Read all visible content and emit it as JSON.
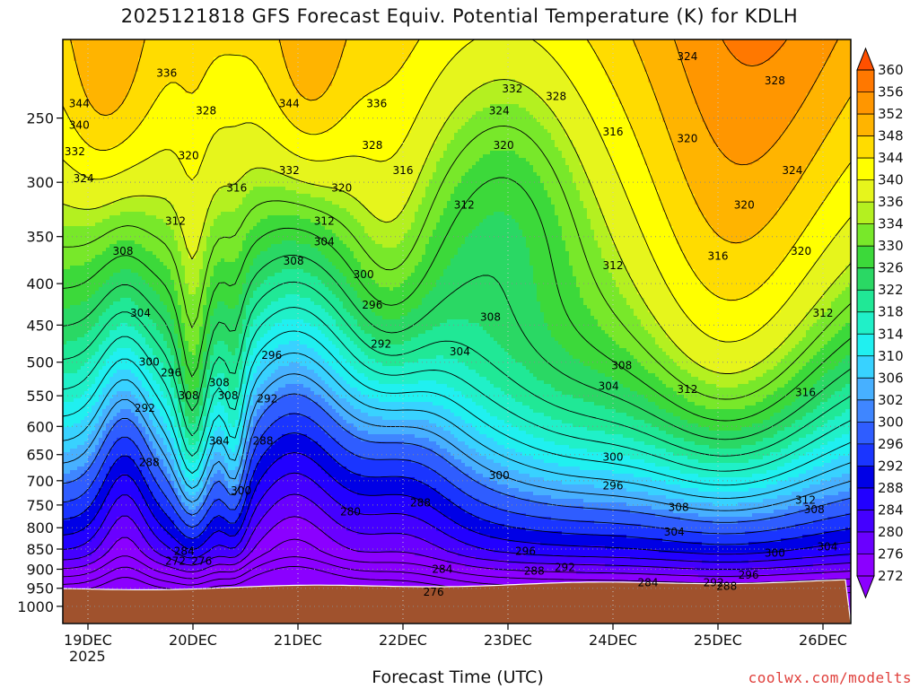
{
  "title": "2025121818 GFS Forecast Equiv. Potential Temperature (K) for KDLH",
  "xlabel": "Forecast Time (UTC)",
  "credit": "coolwx.com/modelts",
  "year_label": "2025",
  "colors": {
    "ground": "#a0522d",
    "scale": [
      "#8b00ff",
      "#6a00ff",
      "#4400ff",
      "#2200ff",
      "#0000e6",
      "#1a35ff",
      "#2f5dff",
      "#3f86ff",
      "#47b0ff",
      "#38d2ff",
      "#20f0f0",
      "#20f0c8",
      "#20e896",
      "#2ad864",
      "#3cd93a",
      "#78e82a",
      "#b4f020",
      "#e6f51c",
      "#ffff00",
      "#ffdc00",
      "#ffb400",
      "#ff9600",
      "#ff7800",
      "#ff5000"
    ]
  },
  "chart_data": {
    "type": "heatmap",
    "title": "2025121818 GFS Forecast Equiv. Potential Temperature (K) for KDLH",
    "xlabel": "Forecast Time (UTC)",
    "ylabel": "",
    "x_ticks": [
      "19DEC",
      "20DEC",
      "21DEC",
      "22DEC",
      "23DEC",
      "24DEC",
      "25DEC",
      "26DEC"
    ],
    "y_ticks": [
      250,
      300,
      350,
      400,
      450,
      500,
      550,
      600,
      650,
      700,
      750,
      800,
      850,
      900,
      950,
      1000
    ],
    "y_axis": "pressure (hPa), inverted, top ~200, bottom ~1050",
    "colorbar_levels": [
      272,
      276,
      280,
      284,
      288,
      292,
      296,
      300,
      302,
      306,
      310,
      314,
      318,
      322,
      326,
      330,
      334,
      336,
      340,
      344,
      348,
      352,
      356,
      360
    ],
    "contour_interval": 4,
    "grid": true,
    "colorbar_position": "right",
    "contour_labels": [
      {
        "value": 344,
        "x": "18DEC 22Z",
        "p": 240
      },
      {
        "value": 340,
        "x": "18DEC 22Z",
        "p": 255
      },
      {
        "value": 332,
        "x": "18DEC 21Z",
        "p": 275
      },
      {
        "value": 324,
        "x": "18DEC 23Z",
        "p": 297
      },
      {
        "value": 336,
        "x": "19DEC 18Z",
        "p": 220
      },
      {
        "value": 328,
        "x": "20DEC 03Z",
        "p": 245
      },
      {
        "value": 320,
        "x": "19DEC 23Z",
        "p": 278
      },
      {
        "value": 316,
        "x": "20DEC 10Z",
        "p": 305
      },
      {
        "value": 312,
        "x": "19DEC 20Z",
        "p": 335
      },
      {
        "value": 308,
        "x": "19DEC 08Z",
        "p": 365
      },
      {
        "value": 304,
        "x": "19DEC 12Z",
        "p": 435
      },
      {
        "value": 300,
        "x": "19DEC 14Z",
        "p": 500
      },
      {
        "value": 296,
        "x": "19DEC 19Z",
        "p": 515
      },
      {
        "value": 292,
        "x": "19DEC 13Z",
        "p": 570
      },
      {
        "value": 288,
        "x": "19DEC 14Z",
        "p": 665
      },
      {
        "value": 308,
        "x": "20DEC 06Z",
        "p": 530
      },
      {
        "value": 308,
        "x": "20DEC 08Z",
        "p": 550
      },
      {
        "value": 308,
        "x": "19DEC 23Z",
        "p": 550
      },
      {
        "value": 304,
        "x": "20DEC 06Z",
        "p": 625
      },
      {
        "value": 300,
        "x": "20DEC 11Z",
        "p": 720
      },
      {
        "value": 284,
        "x": "19DEC 22Z",
        "p": 855
      },
      {
        "value": 272,
        "x": "19DEC 20Z",
        "p": 880
      },
      {
        "value": 276,
        "x": "20DEC 02Z",
        "p": 880
      },
      {
        "value": 344,
        "x": "20DEC 22Z",
        "p": 240
      },
      {
        "value": 336,
        "x": "21DEC 18Z",
        "p": 240
      },
      {
        "value": 332,
        "x": "20DEC 22Z",
        "p": 290
      },
      {
        "value": 328,
        "x": "21DEC 17Z",
        "p": 270
      },
      {
        "value": 320,
        "x": "21DEC 10Z",
        "p": 305
      },
      {
        "value": 316,
        "x": "22DEC 00Z",
        "p": 290
      },
      {
        "value": 312,
        "x": "21DEC 06Z",
        "p": 335
      },
      {
        "value": 304,
        "x": "21DEC 06Z",
        "p": 355
      },
      {
        "value": 308,
        "x": "20DEC 23Z",
        "p": 375
      },
      {
        "value": 300,
        "x": "21DEC 15Z",
        "p": 390
      },
      {
        "value": 296,
        "x": "21DEC 17Z",
        "p": 425
      },
      {
        "value": 292,
        "x": "21DEC 19Z",
        "p": 475
      },
      {
        "value": 296,
        "x": "20DEC 18Z",
        "p": 490
      },
      {
        "value": 292,
        "x": "20DEC 17Z",
        "p": 555
      },
      {
        "value": 288,
        "x": "20DEC 16Z",
        "p": 625
      },
      {
        "value": 280,
        "x": "21DEC 12Z",
        "p": 765
      },
      {
        "value": 288,
        "x": "22DEC 04Z",
        "p": 745
      },
      {
        "value": 284,
        "x": "22DEC 09Z",
        "p": 900
      },
      {
        "value": 276,
        "x": "22DEC 07Z",
        "p": 960
      },
      {
        "value": 312,
        "x": "22DEC 14Z",
        "p": 320
      },
      {
        "value": 308,
        "x": "22DEC 20Z",
        "p": 440
      },
      {
        "value": 304,
        "x": "22DEC 13Z",
        "p": 485
      },
      {
        "value": 300,
        "x": "22DEC 22Z",
        "p": 690
      },
      {
        "value": 296,
        "x": "23DEC 04Z",
        "p": 855
      },
      {
        "value": 288,
        "x": "23DEC 06Z",
        "p": 905
      },
      {
        "value": 292,
        "x": "23DEC 13Z",
        "p": 895
      },
      {
        "value": 332,
        "x": "23DEC 01Z",
        "p": 230
      },
      {
        "value": 328,
        "x": "23DEC 11Z",
        "p": 235
      },
      {
        "value": 324,
        "x": "22DEC 22Z",
        "p": 245
      },
      {
        "value": 320,
        "x": "22DEC 23Z",
        "p": 270
      },
      {
        "value": 316,
        "x": "24DEC 00Z",
        "p": 260
      },
      {
        "value": 312,
        "x": "24DEC 00Z",
        "p": 380
      },
      {
        "value": 308,
        "x": "24DEC 02Z",
        "p": 505
      },
      {
        "value": 304,
        "x": "23DEC 23Z",
        "p": 535
      },
      {
        "value": 300,
        "x": "24DEC 00Z",
        "p": 655
      },
      {
        "value": 296,
        "x": "24DEC 00Z",
        "p": 710
      },
      {
        "value": 284,
        "x": "24DEC 08Z",
        "p": 935
      },
      {
        "value": 324,
        "x": "24DEC 17Z",
        "p": 210
      },
      {
        "value": 320,
        "x": "24DEC 17Z",
        "p": 265
      },
      {
        "value": 312,
        "x": "24DEC 17Z",
        "p": 540
      },
      {
        "value": 308,
        "x": "24DEC 15Z",
        "p": 755
      },
      {
        "value": 304,
        "x": "24DEC 14Z",
        "p": 810
      },
      {
        "value": 292,
        "x": "24DEC 23Z",
        "p": 935
      },
      {
        "value": 288,
        "x": "25DEC 02Z",
        "p": 945
      },
      {
        "value": 296,
        "x": "25DEC 07Z",
        "p": 915
      },
      {
        "value": 300,
        "x": "25DEC 13Z",
        "p": 860
      },
      {
        "value": 316,
        "x": "25DEC 00Z",
        "p": 370
      },
      {
        "value": 320,
        "x": "25DEC 06Z",
        "p": 320
      },
      {
        "value": 324,
        "x": "25DEC 17Z",
        "p": 290
      },
      {
        "value": 328,
        "x": "25DEC 13Z",
        "p": 225
      },
      {
        "value": 320,
        "x": "25DEC 19Z",
        "p": 365
      },
      {
        "value": 312,
        "x": "26DEC 00Z",
        "p": 435
      },
      {
        "value": 316,
        "x": "25DEC 20Z",
        "p": 545
      },
      {
        "value": 312,
        "x": "25DEC 20Z",
        "p": 740
      },
      {
        "value": 308,
        "x": "25DEC 22Z",
        "p": 760
      },
      {
        "value": 304,
        "x": "26DEC 01Z",
        "p": 845
      }
    ]
  }
}
